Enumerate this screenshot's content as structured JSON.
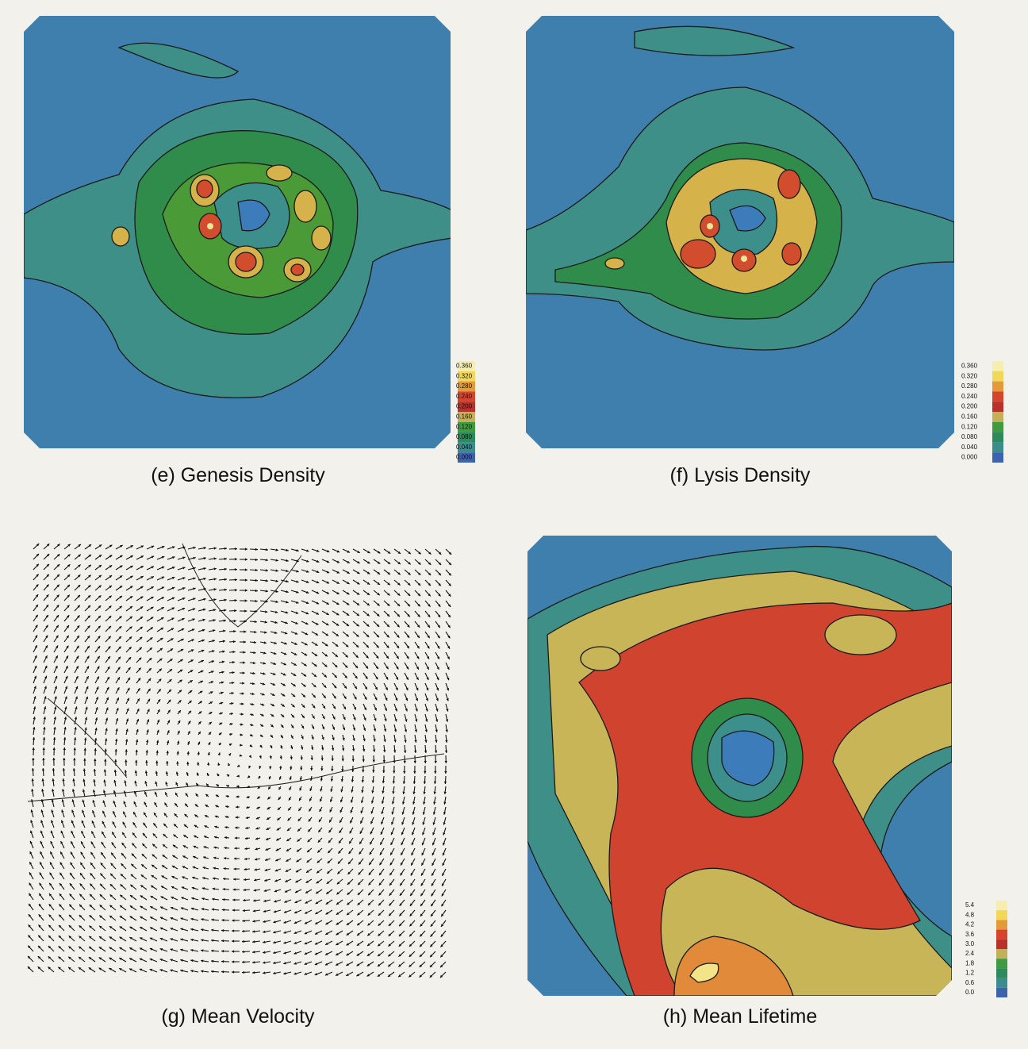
{
  "panels": [
    {
      "caption": "(e) Genesis Density",
      "colorbar": [
        "0.360",
        "0.320",
        "0.280",
        "0.240",
        "0.200",
        "0.160",
        "0.120",
        "0.080",
        "0.040",
        "0.000"
      ]
    },
    {
      "caption": "(f) Lysis Density",
      "colorbar": [
        "0.360",
        "0.320",
        "0.280",
        "0.240",
        "0.200",
        "0.160",
        "0.120",
        "0.080",
        "0.040",
        "0.000"
      ]
    },
    {
      "caption": "(g) Mean Velocity"
    },
    {
      "caption": "(h) Mean Lifetime",
      "colorbar": [
        "5.4",
        "4.8",
        "4.2",
        "3.6",
        "3.0",
        "2.4",
        "1.8",
        "1.2",
        "0.6",
        "0.0"
      ]
    }
  ]
}
